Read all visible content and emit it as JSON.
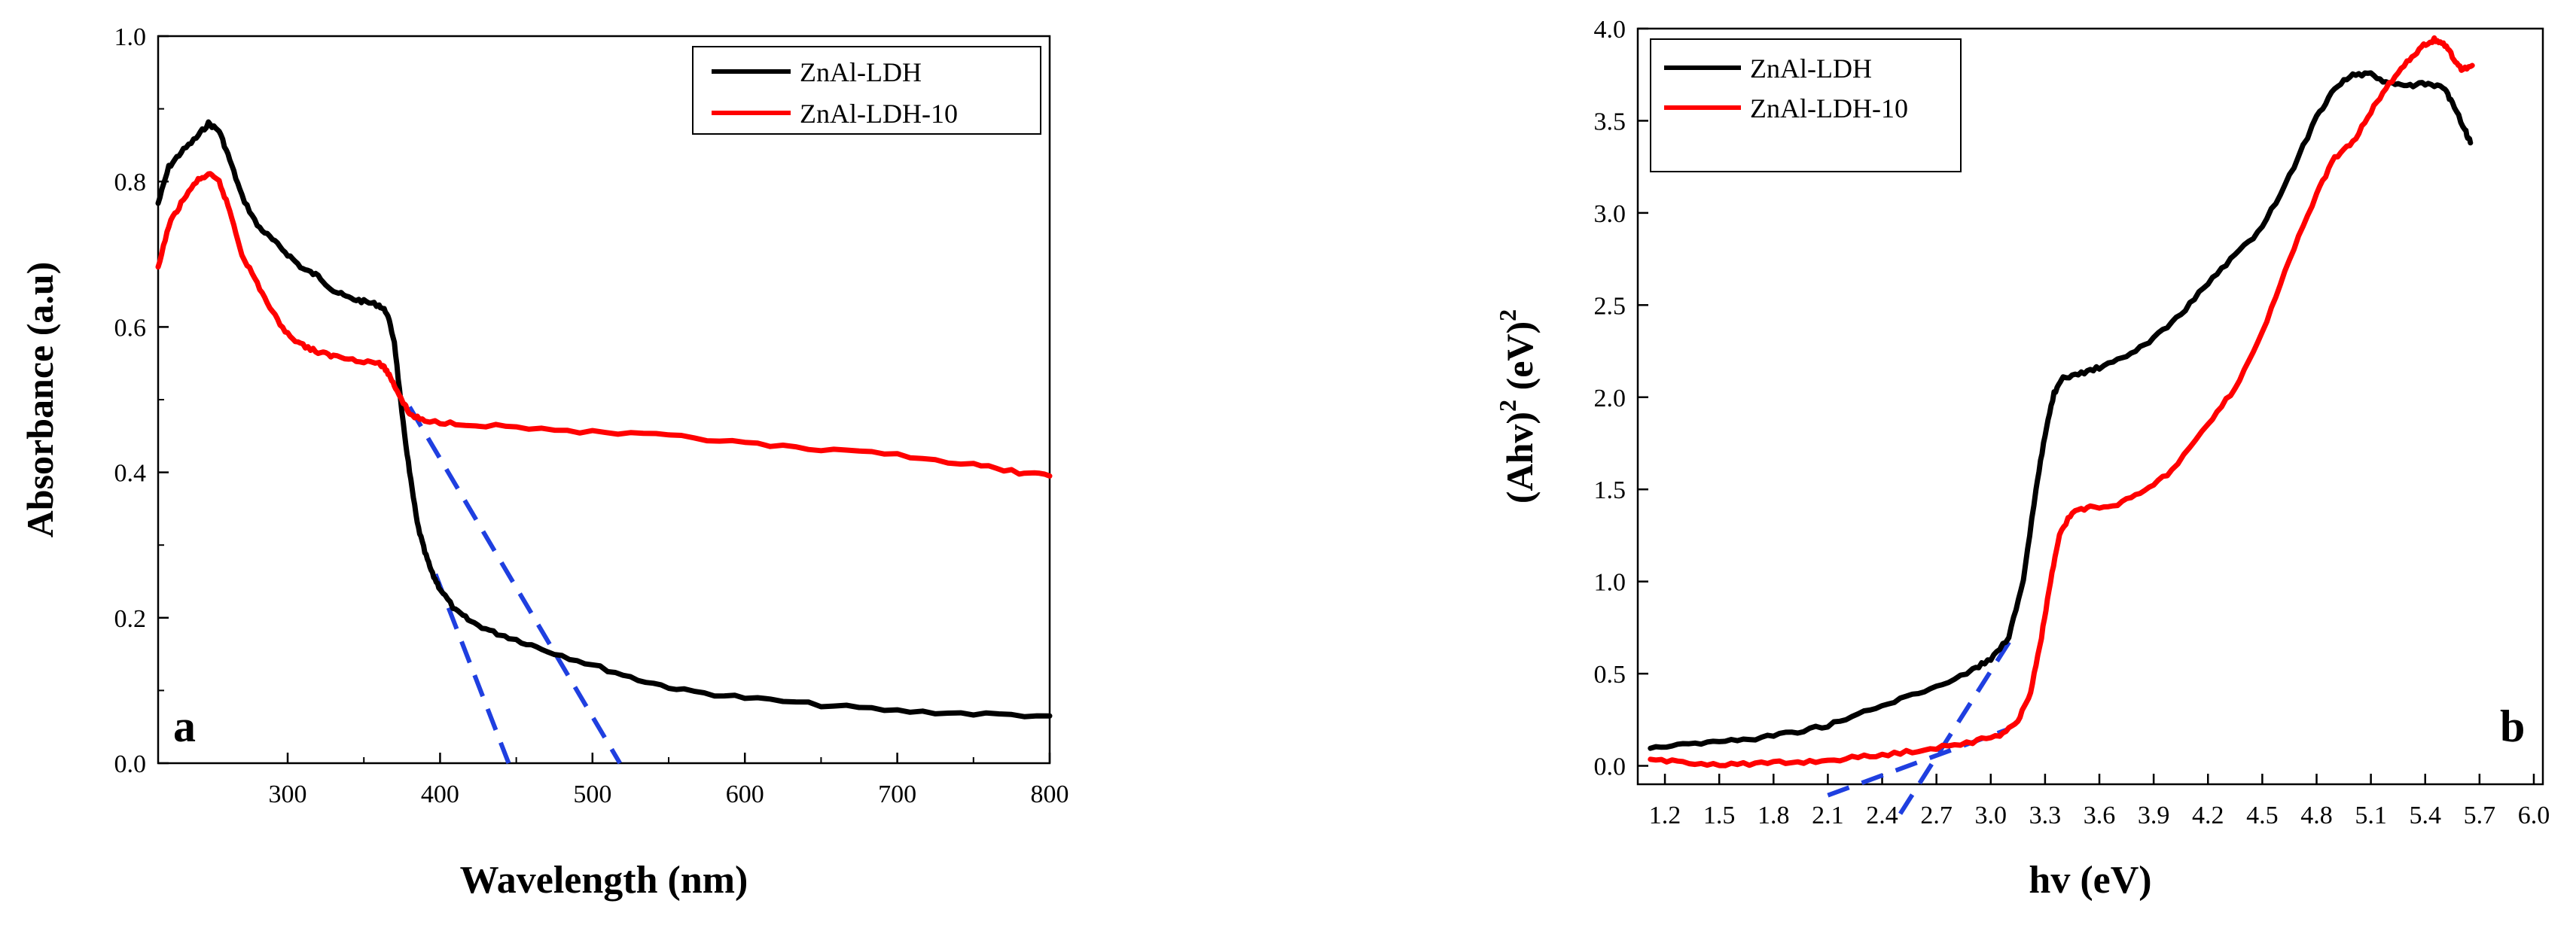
{
  "chart_data": [
    {
      "type": "line",
      "panel_label": "a",
      "title": "",
      "xlabel": "Wavelength (nm)",
      "ylabel": "Absorbance (a.u)",
      "xlim": [
        215,
        800
      ],
      "ylim": [
        0.0,
        1.0
      ],
      "x_ticks": [
        "300",
        "400",
        "500",
        "600",
        "700",
        "800"
      ],
      "y_ticks": [
        "0.0",
        "0.2",
        "0.4",
        "0.6",
        "0.8",
        "1.0"
      ],
      "legend_position": "top-right",
      "series": [
        {
          "name": "ZnAl-LDH",
          "color": "#000000",
          "points": [
            [
              215,
              0.77
            ],
            [
              222,
              0.82
            ],
            [
              230,
              0.84
            ],
            [
              240,
              0.86
            ],
            [
              248,
              0.88
            ],
            [
              255,
              0.87
            ],
            [
              262,
              0.83
            ],
            [
              270,
              0.78
            ],
            [
              280,
              0.74
            ],
            [
              290,
              0.72
            ],
            [
              300,
              0.7
            ],
            [
              310,
              0.68
            ],
            [
              320,
              0.67
            ],
            [
              330,
              0.65
            ],
            [
              340,
              0.64
            ],
            [
              350,
              0.635
            ],
            [
              360,
              0.63
            ],
            [
              365,
              0.62
            ],
            [
              370,
              0.58
            ],
            [
              375,
              0.48
            ],
            [
              380,
              0.4
            ],
            [
              385,
              0.33
            ],
            [
              390,
              0.29
            ],
            [
              395,
              0.26
            ],
            [
              400,
              0.24
            ],
            [
              410,
              0.21
            ],
            [
              420,
              0.195
            ],
            [
              435,
              0.18
            ],
            [
              450,
              0.17
            ],
            [
              470,
              0.155
            ],
            [
              500,
              0.135
            ],
            [
              530,
              0.115
            ],
            [
              560,
              0.1
            ],
            [
              600,
              0.09
            ],
            [
              650,
              0.08
            ],
            [
              700,
              0.072
            ],
            [
              750,
              0.068
            ],
            [
              800,
              0.065
            ]
          ]
        },
        {
          "name": "ZnAl-LDH-10",
          "color": "#ff0000",
          "points": [
            [
              215,
              0.68
            ],
            [
              222,
              0.74
            ],
            [
              230,
              0.77
            ],
            [
              240,
              0.8
            ],
            [
              248,
              0.81
            ],
            [
              255,
              0.8
            ],
            [
              262,
              0.76
            ],
            [
              270,
              0.7
            ],
            [
              280,
              0.66
            ],
            [
              290,
              0.62
            ],
            [
              300,
              0.59
            ],
            [
              310,
              0.575
            ],
            [
              320,
              0.565
            ],
            [
              330,
              0.56
            ],
            [
              345,
              0.555
            ],
            [
              360,
              0.55
            ],
            [
              365,
              0.54
            ],
            [
              370,
              0.52
            ],
            [
              375,
              0.5
            ],
            [
              380,
              0.48
            ],
            [
              390,
              0.47
            ],
            [
              410,
              0.468
            ],
            [
              450,
              0.462
            ],
            [
              500,
              0.455
            ],
            [
              550,
              0.45
            ],
            [
              600,
              0.44
            ],
            [
              650,
              0.43
            ],
            [
              700,
              0.425
            ],
            [
              750,
              0.41
            ],
            [
              780,
              0.4
            ],
            [
              800,
              0.395
            ]
          ]
        }
      ],
      "tangent_lines": [
        {
          "color": "#1f3fe0",
          "points": [
            [
              380,
              0.49
            ],
            [
              518,
              0.0
            ]
          ]
        },
        {
          "color": "#1f3fe0",
          "points": [
            [
              397,
              0.26
            ],
            [
              445,
              0.0
            ]
          ]
        }
      ]
    },
    {
      "type": "line",
      "panel_label": "b",
      "title": "",
      "xlabel": "hv (eV)",
      "ylabel_main": "(Ahv)",
      "ylabel_sup1": "2",
      "ylabel_mid": " (eV)",
      "ylabel_sup2": "2",
      "xlim": [
        1.05,
        6.05
      ],
      "ylim": [
        -0.1,
        4.0
      ],
      "x_ticks": [
        "1.2",
        "1.5",
        "1.8",
        "2.1",
        "2.4",
        "2.7",
        "3.0",
        "3.3",
        "3.6",
        "3.9",
        "4.2",
        "4.5",
        "4.8",
        "5.1",
        "5.4",
        "5.7",
        "6.0"
      ],
      "y_ticks": [
        "0.0",
        "0.5",
        "1.0",
        "1.5",
        "2.0",
        "2.5",
        "3.0",
        "3.5",
        "4.0"
      ],
      "legend_position": "top-left",
      "series": [
        {
          "name": "ZnAl-LDH",
          "color": "#000000",
          "points": [
            [
              1.12,
              0.1
            ],
            [
              1.3,
              0.12
            ],
            [
              1.5,
              0.13
            ],
            [
              1.7,
              0.15
            ],
            [
              1.9,
              0.18
            ],
            [
              2.1,
              0.22
            ],
            [
              2.3,
              0.29
            ],
            [
              2.5,
              0.36
            ],
            [
              2.7,
              0.43
            ],
            [
              2.9,
              0.52
            ],
            [
              3.0,
              0.58
            ],
            [
              3.1,
              0.7
            ],
            [
              3.18,
              1.0
            ],
            [
              3.25,
              1.5
            ],
            [
              3.3,
              1.8
            ],
            [
              3.35,
              2.02
            ],
            [
              3.4,
              2.1
            ],
            [
              3.5,
              2.13
            ],
            [
              3.6,
              2.16
            ],
            [
              3.75,
              2.22
            ],
            [
              3.9,
              2.32
            ],
            [
              4.05,
              2.45
            ],
            [
              4.2,
              2.62
            ],
            [
              4.35,
              2.77
            ],
            [
              4.5,
              2.92
            ],
            [
              4.65,
              3.2
            ],
            [
              4.8,
              3.52
            ],
            [
              4.9,
              3.68
            ],
            [
              5.0,
              3.75
            ],
            [
              5.1,
              3.75
            ],
            [
              5.2,
              3.7
            ],
            [
              5.3,
              3.69
            ],
            [
              5.4,
              3.7
            ],
            [
              5.5,
              3.68
            ],
            [
              5.55,
              3.6
            ],
            [
              5.62,
              3.45
            ],
            [
              5.65,
              3.38
            ]
          ]
        },
        {
          "name": "ZnAl-LDH-10",
          "color": "#ff0000",
          "points": [
            [
              1.12,
              0.03
            ],
            [
              1.3,
              0.02
            ],
            [
              1.5,
              0.01
            ],
            [
              1.7,
              0.01
            ],
            [
              1.9,
              0.02
            ],
            [
              2.1,
              0.03
            ],
            [
              2.3,
              0.05
            ],
            [
              2.5,
              0.07
            ],
            [
              2.7,
              0.1
            ],
            [
              2.9,
              0.13
            ],
            [
              3.05,
              0.17
            ],
            [
              3.15,
              0.24
            ],
            [
              3.22,
              0.4
            ],
            [
              3.28,
              0.7
            ],
            [
              3.33,
              1.0
            ],
            [
              3.38,
              1.25
            ],
            [
              3.45,
              1.38
            ],
            [
              3.55,
              1.4
            ],
            [
              3.7,
              1.42
            ],
            [
              3.85,
              1.5
            ],
            [
              4.0,
              1.6
            ],
            [
              4.2,
              1.85
            ],
            [
              4.35,
              2.05
            ],
            [
              4.5,
              2.35
            ],
            [
              4.65,
              2.75
            ],
            [
              4.8,
              3.1
            ],
            [
              4.9,
              3.3
            ],
            [
              5.0,
              3.38
            ],
            [
              5.1,
              3.55
            ],
            [
              5.2,
              3.7
            ],
            [
              5.3,
              3.82
            ],
            [
              5.38,
              3.9
            ],
            [
              5.45,
              3.94
            ],
            [
              5.5,
              3.92
            ],
            [
              5.55,
              3.85
            ],
            [
              5.6,
              3.78
            ],
            [
              5.66,
              3.8
            ]
          ]
        }
      ],
      "tangent_lines": [
        {
          "color": "#1f3fe0",
          "points": [
            [
              2.1,
              -0.16
            ],
            [
              3.1,
              0.2
            ]
          ]
        },
        {
          "color": "#1f3fe0",
          "points": [
            [
              2.5,
              -0.26
            ],
            [
              3.12,
              0.7
            ]
          ]
        }
      ]
    }
  ]
}
